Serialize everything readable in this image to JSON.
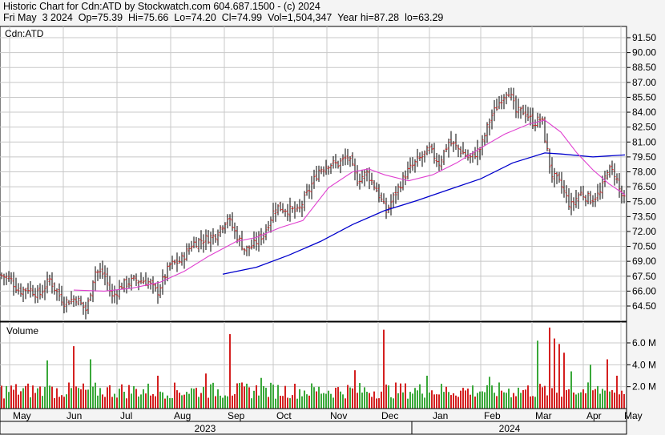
{
  "header": {
    "line1": "Historic Chart for Cdn:ATD by Stockwatch.com 604.687.1500 - (c) 2024",
    "line2": "Fri May  3 2024  Op=75.39  Hi=75.66  Lo=74.20  Cl=74.99  Vol=1,504,347  Year hi=87.28  lo=63.29"
  },
  "colors": {
    "up": "#3aa83a",
    "down": "#d42020",
    "ma_short": "#e040d0",
    "ma_long": "#0000cc",
    "grid": "#c8c8c8",
    "bar": "#000000"
  },
  "chart_data": [
    {
      "type": "ohlc",
      "symbol_label": "Cdn:ATD",
      "ylim": [
        63.29,
        92.5
      ],
      "y_ticks": [
        "91.50",
        "90.00",
        "88.50",
        "87.00",
        "85.50",
        "84.00",
        "82.50",
        "81.00",
        "79.50",
        "78.00",
        "76.50",
        "75.00",
        "73.50",
        "72.00",
        "70.50",
        "69.00",
        "67.50",
        "66.00",
        "64.50"
      ],
      "months": [
        "May",
        "Jun",
        "Jul",
        "Aug",
        "Sep",
        "Oct",
        "Nov",
        "Dec",
        "Jan",
        "Feb",
        "Mar",
        "Apr",
        "May"
      ],
      "years": [
        "2023",
        "2024"
      ],
      "close_anchors": [
        {
          "x": 0,
          "y": 67.6
        },
        {
          "x": 12,
          "y": 67.3
        },
        {
          "x": 24,
          "y": 66.0
        },
        {
          "x": 35,
          "y": 66.3
        },
        {
          "x": 49,
          "y": 65.6
        },
        {
          "x": 62,
          "y": 67.2
        },
        {
          "x": 70,
          "y": 66.0
        },
        {
          "x": 80,
          "y": 64.9
        },
        {
          "x": 95,
          "y": 65.3
        },
        {
          "x": 108,
          "y": 64.0
        },
        {
          "x": 118,
          "y": 68.0
        },
        {
          "x": 130,
          "y": 67.7
        },
        {
          "x": 140,
          "y": 65.4
        },
        {
          "x": 152,
          "y": 66.6
        },
        {
          "x": 168,
          "y": 67.1
        },
        {
          "x": 184,
          "y": 67.0
        },
        {
          "x": 196,
          "y": 65.8
        },
        {
          "x": 212,
          "y": 68.6
        },
        {
          "x": 226,
          "y": 69.1
        },
        {
          "x": 240,
          "y": 70.8
        },
        {
          "x": 254,
          "y": 71.2
        },
        {
          "x": 268,
          "y": 71.6
        },
        {
          "x": 284,
          "y": 73.4
        },
        {
          "x": 296,
          "y": 71.5
        },
        {
          "x": 306,
          "y": 70.1
        },
        {
          "x": 316,
          "y": 70.6
        },
        {
          "x": 330,
          "y": 71.9
        },
        {
          "x": 344,
          "y": 74.5
        },
        {
          "x": 358,
          "y": 74.2
        },
        {
          "x": 372,
          "y": 74.0
        },
        {
          "x": 384,
          "y": 75.9
        },
        {
          "x": 398,
          "y": 78.2
        },
        {
          "x": 410,
          "y": 78.8
        },
        {
          "x": 422,
          "y": 78.8
        },
        {
          "x": 434,
          "y": 79.5
        },
        {
          "x": 446,
          "y": 77.2
        },
        {
          "x": 458,
          "y": 77.9
        },
        {
          "x": 470,
          "y": 76.2
        },
        {
          "x": 482,
          "y": 74.0
        },
        {
          "x": 494,
          "y": 75.9
        },
        {
          "x": 508,
          "y": 78.0
        },
        {
          "x": 522,
          "y": 79.2
        },
        {
          "x": 536,
          "y": 80.2
        },
        {
          "x": 548,
          "y": 78.9
        },
        {
          "x": 560,
          "y": 81.0
        },
        {
          "x": 574,
          "y": 80.2
        },
        {
          "x": 586,
          "y": 79.3
        },
        {
          "x": 600,
          "y": 80.4
        },
        {
          "x": 612,
          "y": 83.4
        },
        {
          "x": 626,
          "y": 85.4
        },
        {
          "x": 634,
          "y": 86.4
        },
        {
          "x": 644,
          "y": 84.0
        },
        {
          "x": 654,
          "y": 84.1
        },
        {
          "x": 666,
          "y": 82.9
        },
        {
          "x": 676,
          "y": 83.4
        },
        {
          "x": 680,
          "y": 81.4
        },
        {
          "x": 688,
          "y": 77.8
        },
        {
          "x": 700,
          "y": 76.7
        },
        {
          "x": 712,
          "y": 74.5
        },
        {
          "x": 724,
          "y": 75.9
        },
        {
          "x": 738,
          "y": 75.2
        },
        {
          "x": 750,
          "y": 75.9
        },
        {
          "x": 758,
          "y": 78.3
        },
        {
          "x": 768,
          "y": 77.8
        },
        {
          "x": 774,
          "y": 75.9
        },
        {
          "x": 780,
          "y": 74.99
        }
      ],
      "ma_short": [
        {
          "x": 92,
          "y": 66.1
        },
        {
          "x": 130,
          "y": 66.0
        },
        {
          "x": 165,
          "y": 66.3
        },
        {
          "x": 200,
          "y": 66.9
        },
        {
          "x": 230,
          "y": 68.0
        },
        {
          "x": 260,
          "y": 69.5
        },
        {
          "x": 295,
          "y": 71.0
        },
        {
          "x": 320,
          "y": 71.4
        },
        {
          "x": 350,
          "y": 72.4
        },
        {
          "x": 378,
          "y": 73.1
        },
        {
          "x": 410,
          "y": 76.4
        },
        {
          "x": 440,
          "y": 78.0
        },
        {
          "x": 460,
          "y": 78.3
        },
        {
          "x": 480,
          "y": 77.7
        },
        {
          "x": 510,
          "y": 77.1
        },
        {
          "x": 540,
          "y": 77.7
        },
        {
          "x": 570,
          "y": 78.9
        },
        {
          "x": 600,
          "y": 80.4
        },
        {
          "x": 630,
          "y": 81.8
        },
        {
          "x": 660,
          "y": 82.8
        },
        {
          "x": 680,
          "y": 83.2
        },
        {
          "x": 700,
          "y": 82.0
        },
        {
          "x": 720,
          "y": 79.9
        },
        {
          "x": 740,
          "y": 78.2
        },
        {
          "x": 760,
          "y": 76.8
        },
        {
          "x": 780,
          "y": 75.7
        }
      ],
      "ma_long": [
        {
          "x": 278,
          "y": 67.7
        },
        {
          "x": 320,
          "y": 68.4
        },
        {
          "x": 360,
          "y": 69.6
        },
        {
          "x": 400,
          "y": 71.0
        },
        {
          "x": 440,
          "y": 72.7
        },
        {
          "x": 480,
          "y": 74.1
        },
        {
          "x": 520,
          "y": 75.1
        },
        {
          "x": 560,
          "y": 76.2
        },
        {
          "x": 600,
          "y": 77.3
        },
        {
          "x": 640,
          "y": 78.9
        },
        {
          "x": 680,
          "y": 79.9
        },
        {
          "x": 700,
          "y": 79.8
        },
        {
          "x": 740,
          "y": 79.5
        },
        {
          "x": 780,
          "y": 79.7
        }
      ]
    },
    {
      "type": "bar",
      "label": "Volume",
      "unit": "M",
      "ylim": [
        0,
        7.6
      ],
      "y_ticks": [
        "6.0 M",
        "4.0 M",
        "2.0 M"
      ],
      "spikes": [
        {
          "x": 58,
          "v": 4.4,
          "up": true
        },
        {
          "x": 92,
          "v": 5.7,
          "up": false
        },
        {
          "x": 113,
          "v": 4.5,
          "up": true
        },
        {
          "x": 197,
          "v": 3.0,
          "up": false
        },
        {
          "x": 257,
          "v": 3.2,
          "up": false
        },
        {
          "x": 288,
          "v": 6.8,
          "up": false
        },
        {
          "x": 326,
          "v": 2.8,
          "up": true
        },
        {
          "x": 444,
          "v": 3.5,
          "up": false
        },
        {
          "x": 480,
          "v": 7.2,
          "up": false
        },
        {
          "x": 532,
          "v": 3.0,
          "up": true
        },
        {
          "x": 612,
          "v": 2.9,
          "up": true
        },
        {
          "x": 672,
          "v": 6.2,
          "up": true
        },
        {
          "x": 686,
          "v": 7.4,
          "up": false
        },
        {
          "x": 692,
          "v": 6.4,
          "up": false
        },
        {
          "x": 697,
          "v": 5.9,
          "up": false
        },
        {
          "x": 704,
          "v": 5.1,
          "up": false
        },
        {
          "x": 714,
          "v": 3.4,
          "up": true
        },
        {
          "x": 738,
          "v": 4.0,
          "up": true
        },
        {
          "x": 758,
          "v": 4.5,
          "up": false
        },
        {
          "x": 770,
          "v": 3.0,
          "up": false
        }
      ]
    }
  ]
}
